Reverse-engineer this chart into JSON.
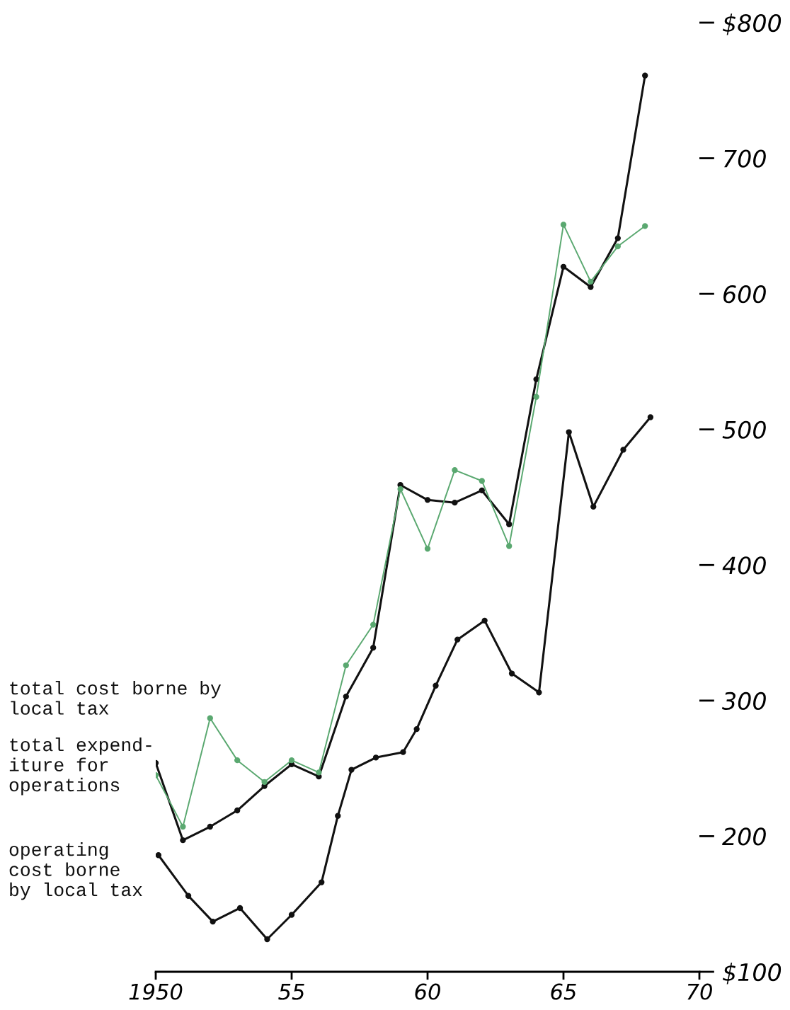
{
  "chart_data": {
    "type": "line",
    "x": [
      1950,
      1951,
      1952,
      1953,
      1954,
      1955,
      1956,
      1957,
      1958,
      1959,
      1960,
      1961,
      1962,
      1963,
      1964,
      1965,
      1966,
      1967,
      1968
    ],
    "series": [
      {
        "name": "total cost borne by\nlocal tax",
        "color": "#5aa870",
        "values": [
          245,
          207,
          287,
          256,
          240,
          256,
          247,
          326,
          356,
          456,
          412,
          470,
          462,
          414,
          524,
          651,
          609,
          635,
          650
        ]
      },
      {
        "name": "total expend-\niture for\noperations",
        "color": "#111111",
        "values": [
          254,
          197,
          207,
          219,
          237,
          253,
          244,
          303,
          339,
          459,
          448,
          446,
          455,
          430,
          537,
          620,
          605,
          641,
          761
        ]
      },
      {
        "name": "operating\ncost borne\nby local tax",
        "color": "#111111",
        "x": [
          1950.1,
          1951.2,
          1952.1,
          1953.1,
          1954.1,
          1955.0,
          1956.1,
          1956.7,
          1957.2,
          1958.1,
          1959.1,
          1959.6,
          1960.3,
          1961.1,
          1962.1,
          1963.1,
          1964.1,
          1965.2,
          1966.1,
          1967.2,
          1968.2
        ],
        "values": [
          186,
          156,
          137,
          147,
          124,
          142,
          166,
          215,
          249,
          258,
          262,
          279,
          311,
          345,
          359,
          320,
          306,
          498,
          443,
          485,
          509
        ]
      }
    ],
    "xlim": [
      1950,
      1970
    ],
    "xticks": [
      {
        "value": 1950,
        "label": "1950"
      },
      {
        "value": 1955,
        "label": "55"
      },
      {
        "value": 1960,
        "label": "60"
      },
      {
        "value": 1965,
        "label": "65"
      },
      {
        "value": 1970,
        "label": "70"
      }
    ],
    "ylim": [
      100,
      800
    ],
    "yticks": [
      {
        "value": 100,
        "label": "$100"
      },
      200,
      300,
      400,
      500,
      600,
      700,
      {
        "value": 800,
        "label": "$800"
      }
    ],
    "marker": "circle",
    "line_style": "solid",
    "grid": false,
    "legend": false
  }
}
